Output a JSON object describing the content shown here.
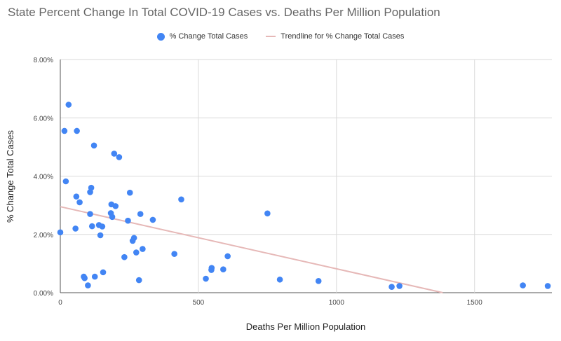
{
  "chart_data": {
    "type": "scatter",
    "title": "State Percent Change In Total COVID-19 Cases vs. Deaths Per Million Population",
    "xlabel": "Deaths Per Million Population",
    "ylabel": "% Change Total Cases",
    "xlim": [
      0,
      1780
    ],
    "ylim": [
      0,
      8
    ],
    "x_ticks": [
      0,
      500,
      1000,
      1500
    ],
    "x_tick_labels": [
      "0",
      "500",
      "1000",
      "1500"
    ],
    "y_ticks": [
      0,
      2,
      4,
      6,
      8
    ],
    "y_tick_labels": [
      "0.00%",
      "2.00%",
      "4.00%",
      "6.00%",
      "8.00%"
    ],
    "grid": true,
    "legend_position": "top",
    "series": [
      {
        "name": "% Change Total Cases",
        "color": "#4285f4",
        "marker": "circle",
        "points": [
          [
            0,
            2.07
          ],
          [
            15,
            5.55
          ],
          [
            20,
            3.82
          ],
          [
            30,
            6.45
          ],
          [
            55,
            2.2
          ],
          [
            58,
            3.3
          ],
          [
            60,
            5.55
          ],
          [
            70,
            3.1
          ],
          [
            85,
            0.55
          ],
          [
            88,
            0.5
          ],
          [
            100,
            0.25
          ],
          [
            108,
            2.7
          ],
          [
            108,
            3.45
          ],
          [
            112,
            3.6
          ],
          [
            115,
            2.28
          ],
          [
            122,
            5.05
          ],
          [
            125,
            0.55
          ],
          [
            140,
            2.32
          ],
          [
            145,
            1.97
          ],
          [
            152,
            2.27
          ],
          [
            155,
            0.7
          ],
          [
            183,
            2.73
          ],
          [
            185,
            3.03
          ],
          [
            188,
            2.6
          ],
          [
            195,
            4.77
          ],
          [
            200,
            2.97
          ],
          [
            213,
            4.65
          ],
          [
            232,
            1.22
          ],
          [
            245,
            2.47
          ],
          [
            252,
            3.43
          ],
          [
            262,
            1.78
          ],
          [
            267,
            1.88
          ],
          [
            275,
            1.38
          ],
          [
            285,
            0.43
          ],
          [
            290,
            2.7
          ],
          [
            298,
            1.5
          ],
          [
            335,
            2.5
          ],
          [
            413,
            1.33
          ],
          [
            438,
            3.2
          ],
          [
            527,
            0.48
          ],
          [
            547,
            0.78
          ],
          [
            548,
            0.85
          ],
          [
            590,
            0.8
          ],
          [
            606,
            1.25
          ],
          [
            750,
            2.72
          ],
          [
            795,
            0.45
          ],
          [
            935,
            0.4
          ],
          [
            1200,
            0.2
          ],
          [
            1228,
            0.23
          ],
          [
            1675,
            0.25
          ],
          [
            1765,
            0.23
          ]
        ]
      },
      {
        "name": "Trendline for % Change Total Cases",
        "color": "#e6b8b7",
        "type": "line",
        "points": [
          [
            0,
            2.95
          ],
          [
            1385,
            0.0
          ]
        ]
      }
    ]
  }
}
